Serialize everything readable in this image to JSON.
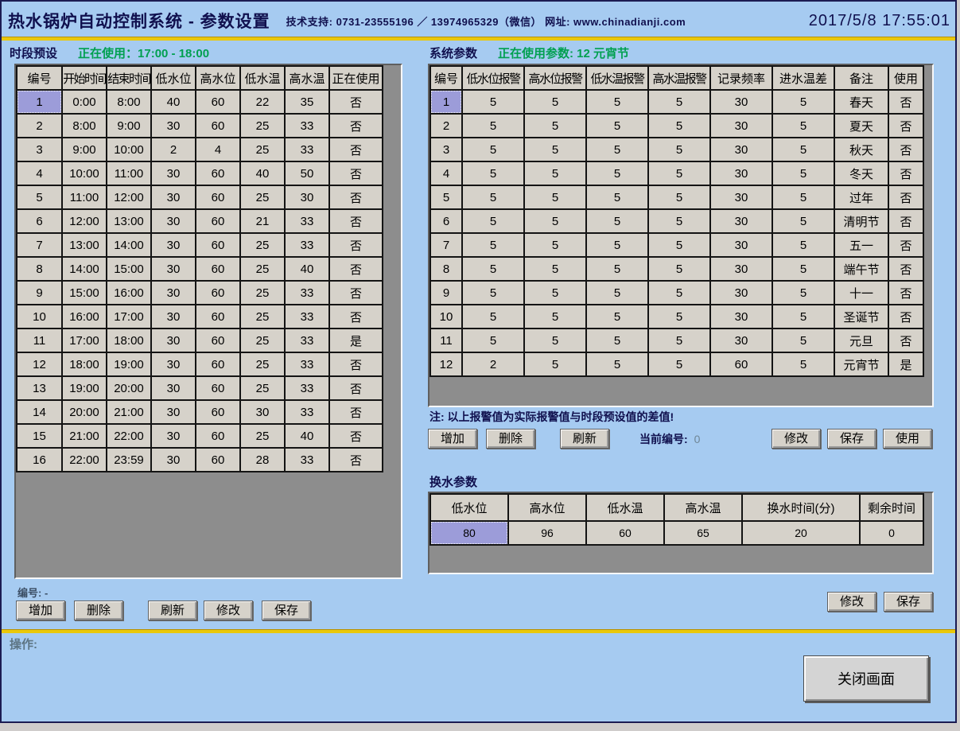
{
  "header": {
    "title": "热水锅炉自动控制系统 - 参数设置",
    "support": "技术支持: 0731-23555196 ／ 13974965329（微信） 网址: www.chinadianji.com",
    "datetime": "2017/5/8 17:55:01"
  },
  "schedule_panel": {
    "title": "时段预设",
    "in_use_label": "正在使用：17:00 - 18:00",
    "columns": [
      "编号",
      "开始时间",
      "结束时间",
      "低水位",
      "高水位",
      "低水温",
      "高水温",
      "正在使用"
    ],
    "rows": [
      [
        "1",
        "0:00",
        "8:00",
        "40",
        "60",
        "22",
        "35",
        "否"
      ],
      [
        "2",
        "8:00",
        "9:00",
        "30",
        "60",
        "25",
        "33",
        "否"
      ],
      [
        "3",
        "9:00",
        "10:00",
        "2",
        "4",
        "25",
        "33",
        "否"
      ],
      [
        "4",
        "10:00",
        "11:00",
        "30",
        "60",
        "40",
        "50",
        "否"
      ],
      [
        "5",
        "11:00",
        "12:00",
        "30",
        "60",
        "25",
        "30",
        "否"
      ],
      [
        "6",
        "12:00",
        "13:00",
        "30",
        "60",
        "21",
        "33",
        "否"
      ],
      [
        "7",
        "13:00",
        "14:00",
        "30",
        "60",
        "25",
        "33",
        "否"
      ],
      [
        "8",
        "14:00",
        "15:00",
        "30",
        "60",
        "25",
        "40",
        "否"
      ],
      [
        "9",
        "15:00",
        "16:00",
        "30",
        "60",
        "25",
        "33",
        "否"
      ],
      [
        "10",
        "16:00",
        "17:00",
        "30",
        "60",
        "25",
        "33",
        "否"
      ],
      [
        "11",
        "17:00",
        "18:00",
        "30",
        "60",
        "25",
        "33",
        "是"
      ],
      [
        "12",
        "18:00",
        "19:00",
        "30",
        "60",
        "25",
        "33",
        "否"
      ],
      [
        "13",
        "19:00",
        "20:00",
        "30",
        "60",
        "25",
        "33",
        "否"
      ],
      [
        "14",
        "20:00",
        "21:00",
        "30",
        "60",
        "30",
        "33",
        "否"
      ],
      [
        "15",
        "21:00",
        "22:00",
        "30",
        "60",
        "25",
        "40",
        "否"
      ],
      [
        "16",
        "22:00",
        "23:59",
        "30",
        "60",
        "28",
        "33",
        "否"
      ]
    ],
    "selected_cell": [
      0,
      0
    ],
    "number_label": "编号: -",
    "buttons": [
      "增加",
      "删除",
      "刷新",
      "修改",
      "保存"
    ]
  },
  "system_panel": {
    "title": "系统参数",
    "in_use_label": "正在使用参数: 12 元宵节",
    "columns": [
      "编号",
      "低水位报警",
      "高水位报警",
      "低水温报警",
      "高水温报警",
      "记录频率",
      "进水温差",
      "备注",
      "使用"
    ],
    "rows": [
      [
        "1",
        "5",
        "5",
        "5",
        "5",
        "30",
        "5",
        "春天",
        "否"
      ],
      [
        "2",
        "5",
        "5",
        "5",
        "5",
        "30",
        "5",
        "夏天",
        "否"
      ],
      [
        "3",
        "5",
        "5",
        "5",
        "5",
        "30",
        "5",
        "秋天",
        "否"
      ],
      [
        "4",
        "5",
        "5",
        "5",
        "5",
        "30",
        "5",
        "冬天",
        "否"
      ],
      [
        "5",
        "5",
        "5",
        "5",
        "5",
        "30",
        "5",
        "过年",
        "否"
      ],
      [
        "6",
        "5",
        "5",
        "5",
        "5",
        "30",
        "5",
        "清明节",
        "否"
      ],
      [
        "7",
        "5",
        "5",
        "5",
        "5",
        "30",
        "5",
        "五一",
        "否"
      ],
      [
        "8",
        "5",
        "5",
        "5",
        "5",
        "30",
        "5",
        "端午节",
        "否"
      ],
      [
        "9",
        "5",
        "5",
        "5",
        "5",
        "30",
        "5",
        "十一",
        "否"
      ],
      [
        "10",
        "5",
        "5",
        "5",
        "5",
        "30",
        "5",
        "圣诞节",
        "否"
      ],
      [
        "11",
        "5",
        "5",
        "5",
        "5",
        "30",
        "5",
        "元旦",
        "否"
      ],
      [
        "12",
        "2",
        "5",
        "5",
        "5",
        "60",
        "5",
        "元宵节",
        "是"
      ]
    ],
    "selected_cell": [
      0,
      0
    ],
    "note": "注: 以上报警值为实际报警值与时段预设值的差值!",
    "left_buttons": [
      "增加",
      "删除",
      "刷新"
    ],
    "current_number_label": "当前编号:",
    "current_number_value": "0",
    "right_buttons": [
      "修改",
      "保存",
      "使用"
    ]
  },
  "water_panel": {
    "title": "换水参数",
    "columns": [
      "低水位",
      "高水位",
      "低水温",
      "高水温",
      "换水时间(分)",
      "剩余时间"
    ],
    "rows": [
      [
        "80",
        "96",
        "60",
        "65",
        "20",
        "0"
      ]
    ],
    "selected_cell": [
      0,
      0
    ],
    "buttons": [
      "修改",
      "保存"
    ]
  },
  "footer": {
    "operation_label": "操作:",
    "close_button": "关闭画面"
  },
  "colors": {
    "background": "#a6cbf1",
    "navy_text": "#10104e",
    "active_green": "#00a050",
    "divider_gold": "#eac80a",
    "cell_bg": "#d6d2ca",
    "selected_cell": "#9c9cd9",
    "grid_bg": "#8d8d8d"
  }
}
